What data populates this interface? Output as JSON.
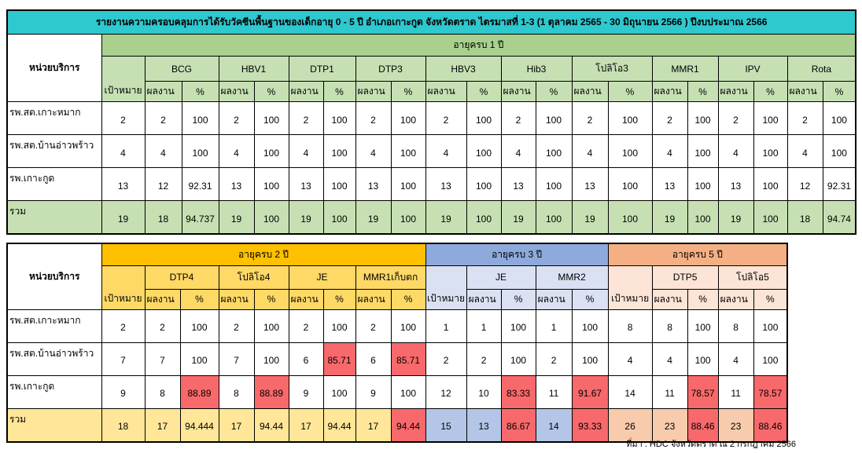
{
  "colors": {
    "title": "#2ec8cf",
    "age1": "#a9d08e",
    "age2": "#ffc000",
    "age3": "#8ea9db",
    "age5": "#f4b084",
    "flag": "#f8696b"
  },
  "labels": {
    "unit": "หน่วยบริการ",
    "target": "เป้าหมาย",
    "result": "ผลงาน",
    "pct": "%"
  },
  "table1": {
    "title": "รายงานความครอบคลุมการได้รับวัคซีนพื้นฐานของเด็กอายุ 0 - 5 ปี อำเภอเกาะกูด จังหวัดตราด ไตรมาสที่ 1-3 (1 ตุลาคม 2565 - 30 มิถุนายน 2566 ) ปีงบประมาณ 2566",
    "group": "อายุครบ 1 ปี",
    "vaccines": [
      "BCG",
      "HBV1",
      "DTP1",
      "DTP3",
      "HBV3",
      "Hib3",
      "โปลิโอ3",
      "MMR1",
      "IPV",
      "Rota"
    ],
    "rows": [
      {
        "unit": "รพ.สต.เกาะหมาก",
        "cells": [
          "2",
          "2",
          "100",
          "2",
          "100",
          "2",
          "100",
          "2",
          "100",
          "2",
          "100",
          "2",
          "100",
          "2",
          "100",
          "2",
          "100",
          "2",
          "100",
          "2",
          "100"
        ],
        "flagged": []
      },
      {
        "unit": "รพ.สต.บ้านอ่าวพร้าว",
        "cells": [
          "4",
          "4",
          "100",
          "4",
          "100",
          "4",
          "100",
          "4",
          "100",
          "4",
          "100",
          "4",
          "100",
          "4",
          "100",
          "4",
          "100",
          "4",
          "100",
          "4",
          "100"
        ],
        "flagged": []
      },
      {
        "unit": "รพ.เกาะกูด",
        "cells": [
          "13",
          "12",
          "92.31",
          "13",
          "100",
          "13",
          "100",
          "13",
          "100",
          "13",
          "100",
          "13",
          "100",
          "13",
          "100",
          "13",
          "100",
          "13",
          "100",
          "12",
          "92.31"
        ],
        "flagged": []
      },
      {
        "unit": "รวม",
        "total": true,
        "cells": [
          "19",
          "18",
          "94.737",
          "19",
          "100",
          "19",
          "100",
          "19",
          "100",
          "19",
          "100",
          "19",
          "100",
          "19",
          "100",
          "19",
          "100",
          "19",
          "100",
          "18",
          "94.74"
        ],
        "flagged": []
      }
    ]
  },
  "table2": {
    "groups": [
      {
        "label": "อายุครบ 2 ปี",
        "vaccines": [
          "DTP4",
          "โปลิโอ4",
          "JE",
          "MMR1เก็บตก"
        ]
      },
      {
        "label": "อายุครบ 3 ปี",
        "vaccines": [
          "JE",
          "MMR2"
        ]
      },
      {
        "label": "อายุครบ 5 ปี",
        "vaccines": [
          "DTP5",
          "โปลิโอ5"
        ]
      }
    ],
    "rows": [
      {
        "unit": "รพ.สต.เกาะหมาก",
        "cells": [
          "2",
          "2",
          "100",
          "2",
          "100",
          "2",
          "100",
          "2",
          "100",
          "1",
          "1",
          "100",
          "1",
          "100",
          "8",
          "8",
          "100",
          "8",
          "100"
        ],
        "flagged": []
      },
      {
        "unit": "รพ.สต.บ้านอ่าวพร้าว",
        "cells": [
          "7",
          "7",
          "100",
          "7",
          "100",
          "6",
          "85.71",
          "6",
          "85.71",
          "2",
          "2",
          "100",
          "2",
          "100",
          "4",
          "4",
          "100",
          "4",
          "100"
        ],
        "flagged": [
          6,
          8
        ]
      },
      {
        "unit": "รพ.เกาะกูด",
        "cells": [
          "9",
          "8",
          "88.89",
          "8",
          "88.89",
          "9",
          "100",
          "9",
          "100",
          "12",
          "10",
          "83.33",
          "11",
          "91.67",
          "14",
          "11",
          "78.57",
          "11",
          "78.57"
        ],
        "flagged": [
          2,
          4,
          11,
          13,
          16,
          18
        ]
      },
      {
        "unit": "รวม",
        "total": true,
        "cells": [
          "18",
          "17",
          "94.444",
          "17",
          "94.44",
          "17",
          "94.44",
          "17",
          "94.44",
          "15",
          "13",
          "86.67",
          "14",
          "93.33",
          "26",
          "23",
          "88.46",
          "23",
          "88.46"
        ],
        "flagged": [
          8,
          11,
          13,
          16,
          18
        ]
      }
    ]
  },
  "note": "ที่มา : HDC จังหวัดตราด ณ 2 กรกฎาคม 2566"
}
